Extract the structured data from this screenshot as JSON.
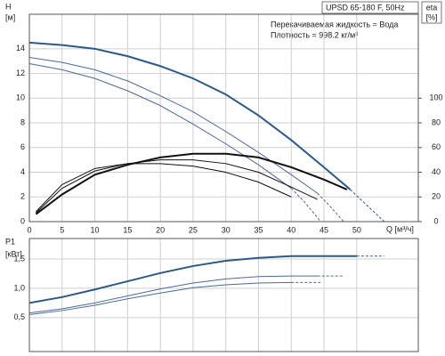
{
  "chart_data": [
    {
      "type": "line",
      "title": "UPSD 65-180 F, 50Hz",
      "annotations": [
        "Перекачиваемая жидкость = Вода",
        "Плотность = 998.2 кг/м³"
      ],
      "y_label": "H",
      "y_unit": "[м]",
      "x_label": "Q [м³/ч]",
      "y2_label": "eta",
      "y2_unit": "[%]",
      "xlim": [
        0,
        59.4
      ],
      "xticks": [
        0,
        5,
        10,
        15,
        20,
        25,
        30,
        35,
        40,
        45,
        50
      ],
      "ylim": [
        0,
        16.8
      ],
      "yticks": [
        0,
        2,
        4,
        6,
        8,
        10,
        12,
        14
      ],
      "y2lim": [
        0,
        168
      ],
      "y2ticks": [
        0,
        20,
        40,
        60,
        80,
        100
      ],
      "grid": true,
      "series": [
        {
          "color": "#2a5a8c",
          "width": 2,
          "dash": false,
          "x": [
            0,
            5,
            10,
            15,
            20,
            25,
            30,
            35,
            40,
            45,
            49
          ],
          "values": [
            14.5,
            14.3,
            14.0,
            13.4,
            12.6,
            11.6,
            10.3,
            8.6,
            6.6,
            4.4,
            2.6
          ]
        },
        {
          "color": "#2a5a8c",
          "width": 1,
          "dash": true,
          "x": [
            49,
            51,
            53,
            54.2
          ],
          "values": [
            2.6,
            1.6,
            0.6,
            0
          ]
        },
        {
          "color": "#4a6a9c",
          "width": 1,
          "dash": false,
          "x": [
            0,
            5,
            10,
            15,
            20,
            25,
            30,
            35,
            40,
            44
          ],
          "values": [
            13.3,
            12.9,
            12.3,
            11.4,
            10.2,
            8.9,
            7.3,
            5.6,
            3.8,
            2.3
          ]
        },
        {
          "color": "#4a6a9c",
          "width": 1,
          "dash": true,
          "x": [
            44,
            46,
            48
          ],
          "values": [
            2.3,
            1.2,
            0
          ]
        },
        {
          "color": "#4a6a9c",
          "width": 1,
          "dash": false,
          "x": [
            0,
            5,
            10,
            15,
            20,
            25,
            30,
            35,
            40
          ],
          "values": [
            12.8,
            12.3,
            11.6,
            10.6,
            9.4,
            7.9,
            6.3,
            4.6,
            2.7
          ]
        },
        {
          "color": "#4a6a9c",
          "width": 1,
          "dash": true,
          "x": [
            40,
            42,
            44.5
          ],
          "values": [
            2.7,
            1.6,
            0
          ]
        },
        {
          "color": "#111111",
          "width": 2,
          "dash": false,
          "axis": "y2",
          "x": [
            1,
            5,
            10,
            15,
            20,
            25,
            30,
            35,
            40,
            45,
            48.5
          ],
          "values": [
            6,
            22,
            38,
            46,
            52,
            55,
            55,
            52,
            44,
            34,
            26
          ]
        },
        {
          "color": "#111111",
          "width": 1,
          "dash": false,
          "axis": "y2",
          "x": [
            1,
            5,
            10,
            15,
            20,
            25,
            30,
            35,
            40,
            44
          ],
          "values": [
            7,
            27,
            41,
            47,
            50,
            50,
            47,
            40,
            28,
            18
          ]
        },
        {
          "color": "#111111",
          "width": 1,
          "dash": false,
          "axis": "y2",
          "x": [
            1,
            5,
            10,
            15,
            20,
            25,
            30,
            35,
            40
          ],
          "values": [
            8,
            30,
            43,
            47,
            47,
            45,
            40,
            32,
            20
          ]
        }
      ]
    },
    {
      "type": "line",
      "y_label": "P1",
      "y_unit": "[кВт]",
      "xlim": [
        0,
        59.4
      ],
      "ylim": [
        -0.08,
        1.85
      ],
      "yticks": [
        {
          "value": 0.5,
          "label": "0,5"
        },
        {
          "value": 1.0,
          "label": "1,0"
        },
        {
          "value": 1.5,
          "label": "1,5"
        }
      ],
      "grid": true,
      "series": [
        {
          "color": "#2a5a8c",
          "width": 2,
          "dash": false,
          "x": [
            0,
            5,
            10,
            15,
            20,
            25,
            30,
            35,
            40,
            45,
            50
          ],
          "values": [
            0.75,
            0.85,
            0.98,
            1.12,
            1.26,
            1.38,
            1.47,
            1.52,
            1.55,
            1.55,
            1.55
          ]
        },
        {
          "color": "#2a5a8c",
          "width": 1,
          "dash": true,
          "x": [
            50,
            54.2
          ],
          "values": [
            1.55,
            1.55
          ]
        },
        {
          "color": "#4a6a9c",
          "width": 1,
          "dash": false,
          "x": [
            0,
            5,
            10,
            15,
            20,
            25,
            30,
            35,
            40,
            44
          ],
          "values": [
            0.58,
            0.65,
            0.75,
            0.87,
            0.99,
            1.09,
            1.16,
            1.2,
            1.21,
            1.21
          ]
        },
        {
          "color": "#4a6a9c",
          "width": 1,
          "dash": true,
          "x": [
            44,
            48
          ],
          "values": [
            1.21,
            1.21
          ]
        },
        {
          "color": "#4a6a9c",
          "width": 1,
          "dash": false,
          "x": [
            0,
            5,
            10,
            15,
            20,
            25,
            30,
            35,
            40
          ],
          "values": [
            0.55,
            0.62,
            0.71,
            0.82,
            0.92,
            1.01,
            1.06,
            1.09,
            1.1
          ]
        },
        {
          "color": "#4a6a9c",
          "width": 1,
          "dash": true,
          "x": [
            40,
            44.5
          ],
          "values": [
            1.1,
            1.1
          ]
        }
      ]
    }
  ]
}
